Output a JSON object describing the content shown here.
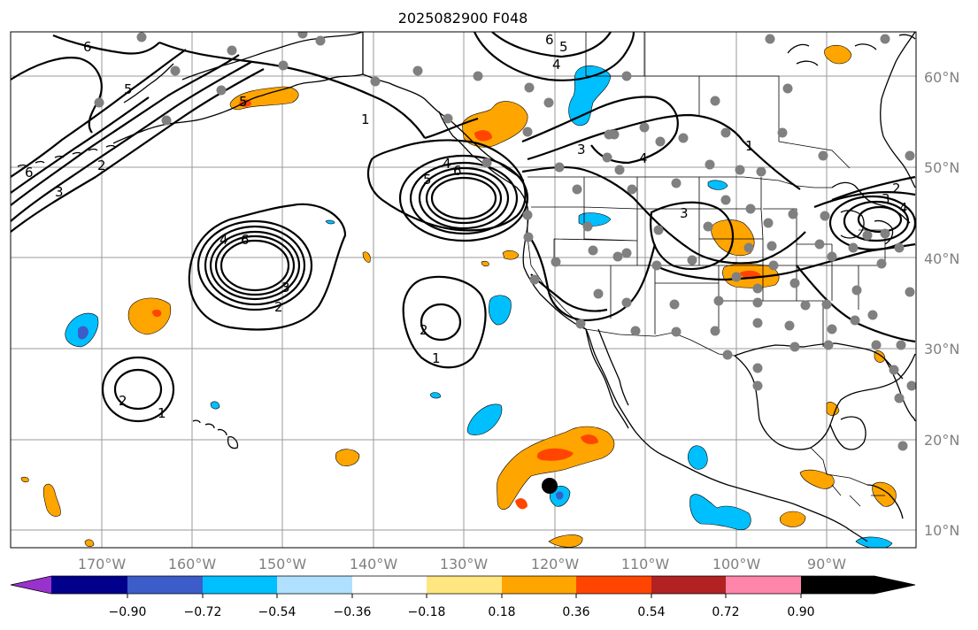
{
  "title": "2025082900 F048",
  "longitude_labels": [
    "170°W",
    "160°W",
    "150°W",
    "140°W",
    "130°W",
    "120°W",
    "110°W",
    "100°W",
    "90°W"
  ],
  "latitude_labels": [
    "60°N",
    "50°N",
    "40°N",
    "30°N",
    "20°N",
    "10°N"
  ],
  "colorbar": {
    "tick_labels": [
      "−0.90",
      "−0.72",
      "−0.54",
      "−0.36",
      "−0.18",
      "0.18",
      "0.36",
      "0.54",
      "0.72",
      "0.90"
    ],
    "colors": [
      "#9932cc",
      "#00008b",
      "#3b5cc9",
      "#00bfff",
      "#b0e0ff",
      "#ffffff",
      "#ffe680",
      "#ffa500",
      "#ff4500",
      "#b22222",
      "#ff85aa"
    ]
  },
  "contour_labels": [
    "6",
    "5",
    "4",
    "3",
    "2",
    "1",
    "6",
    "5",
    "4",
    "3",
    "2",
    "4",
    "6",
    "3",
    "2",
    "1",
    "5",
    "4",
    "6",
    "1",
    "3",
    "2",
    "1",
    "2",
    "1",
    "2",
    "1",
    "6",
    "5",
    "4",
    "3",
    "4",
    "3",
    "1",
    "3",
    "2",
    "4"
  ],
  "marker": {
    "type": "center-point",
    "color": "#000000"
  },
  "station_color": "#808080"
}
